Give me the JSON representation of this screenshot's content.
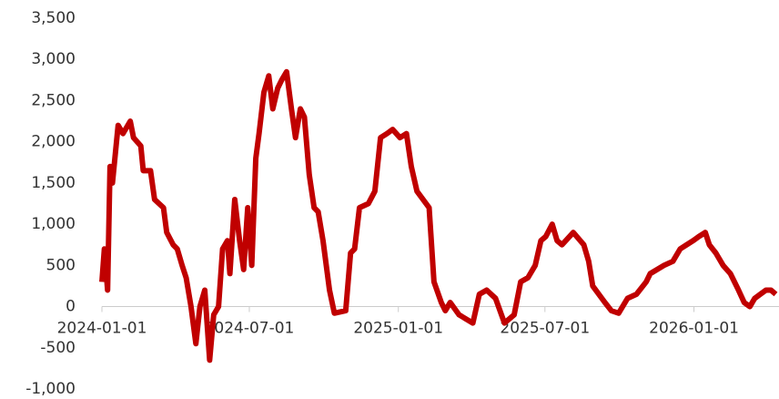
{
  "chart_data": {
    "type": "line",
    "x": [
      "2024-01-01",
      "2024-01-04",
      "2024-01-08",
      "2024-01-11",
      "2024-01-14",
      "2024-01-18",
      "2024-01-21",
      "2024-01-27",
      "2024-02-05",
      "2024-02-09",
      "2024-02-18",
      "2024-02-21",
      "2024-03-01",
      "2024-03-06",
      "2024-03-17",
      "2024-03-21",
      "2024-03-29",
      "2024-04-03",
      "2024-04-09",
      "2024-04-14",
      "2024-04-20",
      "2024-04-26",
      "2024-05-01",
      "2024-05-07",
      "2024-05-13",
      "2024-05-18",
      "2024-05-24",
      "2024-05-29",
      "2024-06-04",
      "2024-06-07",
      "2024-06-13",
      "2024-06-19",
      "2024-06-24",
      "2024-06-29",
      "2024-07-04",
      "2024-07-09",
      "2024-07-13",
      "2024-07-19",
      "2024-07-25",
      "2024-07-30",
      "2024-08-05",
      "2024-08-10",
      "2024-08-16",
      "2024-08-22",
      "2024-08-27",
      "2024-09-02",
      "2024-09-07",
      "2024-09-13",
      "2024-09-19",
      "2024-09-24",
      "2024-09-30",
      "2024-10-08",
      "2024-10-14",
      "2024-10-28",
      "2024-11-03",
      "2024-11-08",
      "2024-11-14",
      "2024-11-25",
      "2024-12-03",
      "2024-12-10",
      "2024-12-18",
      "2024-12-25",
      "2025-01-03",
      "2025-01-11",
      "2025-01-17",
      "2025-01-24",
      "2025-02-08",
      "2025-02-14",
      "2025-02-23",
      "2025-02-28",
      "2025-03-06",
      "2025-03-17",
      "2025-04-03",
      "2025-04-11",
      "2025-04-20",
      "2025-05-01",
      "2025-05-12",
      "2025-05-24",
      "2025-06-01",
      "2025-06-10",
      "2025-06-19",
      "2025-06-26",
      "2025-07-02",
      "2025-07-10",
      "2025-07-16",
      "2025-07-22",
      "2025-08-05",
      "2025-08-18",
      "2025-08-24",
      "2025-08-29",
      "2025-09-13",
      "2025-09-21",
      "2025-09-30",
      "2025-10-11",
      "2025-10-22",
      "2025-11-03",
      "2025-11-08",
      "2025-11-25",
      "2025-12-06",
      "2025-12-15",
      "2025-12-23",
      "2025-12-31",
      "2026-01-07",
      "2026-01-15",
      "2026-01-20",
      "2026-01-28",
      "2026-02-06",
      "2026-02-15",
      "2026-02-25",
      "2026-03-04",
      "2026-03-11",
      "2026-03-17",
      "2026-03-24",
      "2026-03-31",
      "2026-04-06",
      "2026-04-12"
    ],
    "series": [
      {
        "color": "#c00000",
        "values": [
          300,
          700,
          200,
          1700,
          1500,
          1900,
          2200,
          2100,
          2250,
          2050,
          1950,
          1650,
          1650,
          1300,
          1200,
          900,
          750,
          700,
          500,
          350,
          0,
          -450,
          0,
          200,
          -650,
          -100,
          0,
          700,
          800,
          400,
          1300,
          800,
          450,
          1200,
          500,
          1800,
          2100,
          2600,
          2800,
          2400,
          2650,
          2750,
          2850,
          2400,
          2050,
          2400,
          2300,
          1600,
          1200,
          1150,
          800,
          200,
          -80,
          -50,
          650,
          700,
          1200,
          1250,
          1400,
          2050,
          2100,
          2150,
          2050,
          2100,
          1700,
          1400,
          1200,
          300,
          50,
          -50,
          50,
          -100,
          -200,
          150,
          200,
          100,
          -200,
          -100,
          300,
          350,
          500,
          800,
          850,
          1000,
          800,
          750,
          900,
          750,
          550,
          250,
          50,
          -50,
          -80,
          100,
          150,
          300,
          400,
          500,
          550,
          700,
          750,
          800,
          850,
          900,
          750,
          650,
          500,
          400,
          200,
          50,
          0,
          100,
          150,
          200,
          200,
          150
        ]
      }
    ],
    "xlim": [
      "2024-01-01",
      "2026-04-16"
    ],
    "xticks": [
      "2024-01-01",
      "2024-07-01",
      "2025-01-01",
      "2025-07-01",
      "2026-01-01"
    ],
    "ylim": [
      -1000,
      3500
    ],
    "yticks": [
      {
        "value": -1000,
        "label": "-1,000"
      },
      -500,
      0,
      500,
      {
        "value": 1000,
        "label": "1,000"
      },
      {
        "value": 1500,
        "label": "1,500"
      },
      {
        "value": 2000,
        "label": "2,000"
      },
      {
        "value": 2500,
        "label": "2,500"
      },
      {
        "value": 3000,
        "label": "3,000"
      },
      {
        "value": 3500,
        "label": "3,500"
      }
    ]
  }
}
